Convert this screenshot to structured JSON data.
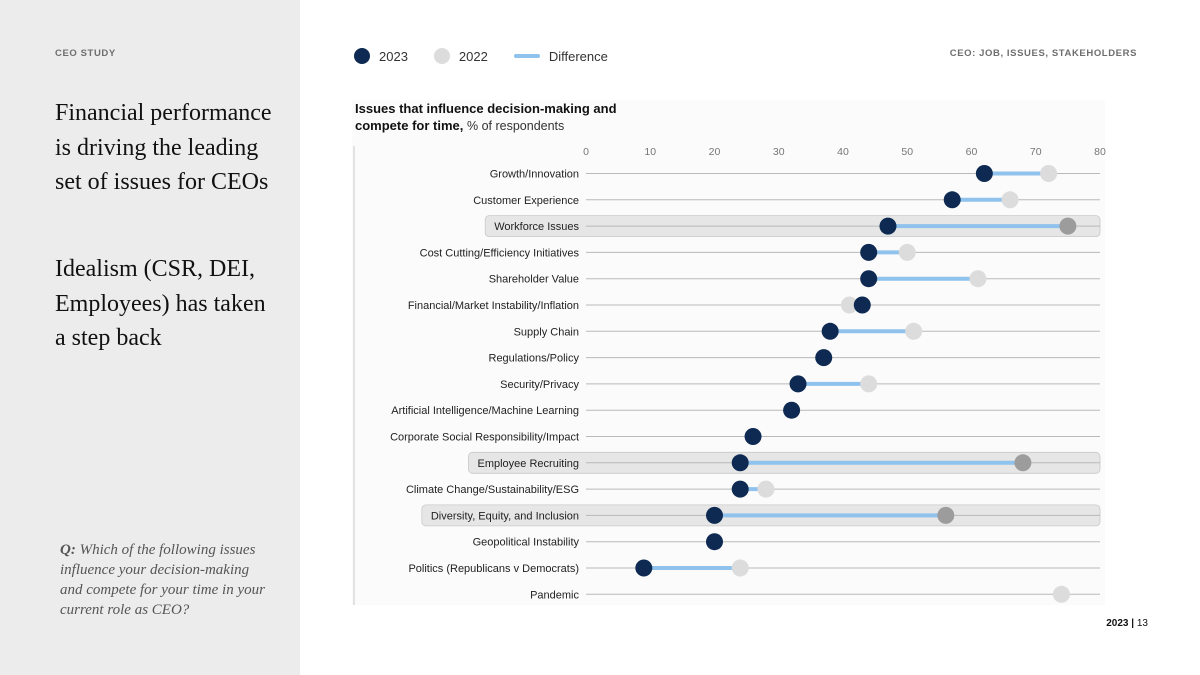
{
  "sidebar": {
    "eyebrow": "CEO STUDY",
    "headline_1": "Financial performance is driving the leading set of issues for CEOs",
    "headline_2": "Idealism (CSR, DEI, Employees) has taken a step back",
    "question_prefix": "Q:",
    "question_text": "Which of the following issues influence your decision-making and compete for your time in your current role as CEO?"
  },
  "header": {
    "section_label": "CEO: JOB, ISSUES, STAKEHOLDERS"
  },
  "legend": {
    "label_2023": "2023",
    "label_2022": "2022",
    "label_diff": "Difference"
  },
  "chart_title": {
    "line_1": "Issues that influence decision-making and",
    "line_2_bold": "compete for time,",
    "line_2_sub": "% of respondents"
  },
  "footer": {
    "year": "2023",
    "separator": "|",
    "page": "13"
  },
  "colors": {
    "navy": "#0e2a52",
    "light_gray": "#dcdcdc",
    "mid_gray": "#9c9c9c",
    "blue_line": "#8fc2ec",
    "highlight_band": "#e6e6e6"
  },
  "chart_data": {
    "type": "dumbbell",
    "title": "Issues that influence decision-making and compete for time, % of respondents",
    "xlim": [
      0,
      80
    ],
    "ticks": [
      0,
      10,
      20,
      30,
      40,
      50,
      60,
      70,
      80
    ],
    "series_names": [
      "2023",
      "2022",
      "Difference"
    ],
    "categories": [
      {
        "label": "Growth/Innovation",
        "v2023": 62,
        "v2022": 72,
        "highlight": false
      },
      {
        "label": "Customer Experience",
        "v2023": 57,
        "v2022": 66,
        "highlight": false
      },
      {
        "label": "Workforce Issues",
        "v2023": 47,
        "v2022": 75,
        "highlight": true
      },
      {
        "label": "Cost Cutting/Efficiency Initiatives",
        "v2023": 44,
        "v2022": 50,
        "highlight": false
      },
      {
        "label": "Shareholder Value",
        "v2023": 44,
        "v2022": 61,
        "highlight": false
      },
      {
        "label": "Financial/Market Instability/Inflation",
        "v2023": 43,
        "v2022": 41,
        "highlight": false
      },
      {
        "label": "Supply Chain",
        "v2023": 38,
        "v2022": 51,
        "highlight": false
      },
      {
        "label": "Regulations/Policy",
        "v2023": 37,
        "v2022": null,
        "highlight": false
      },
      {
        "label": "Security/Privacy",
        "v2023": 33,
        "v2022": 44,
        "highlight": false
      },
      {
        "label": "Artificial Intelligence/Machine Learning",
        "v2023": 32,
        "v2022": null,
        "highlight": false
      },
      {
        "label": "Corporate Social Responsibility/Impact",
        "v2023": 26,
        "v2022": null,
        "highlight": false
      },
      {
        "label": "Employee Recruiting",
        "v2023": 24,
        "v2022": 68,
        "highlight": true
      },
      {
        "label": "Climate Change/Sustainability/ESG",
        "v2023": 24,
        "v2022": 28,
        "highlight": false
      },
      {
        "label": "Diversity, Equity, and Inclusion",
        "v2023": 20,
        "v2022": 56,
        "highlight": true
      },
      {
        "label": "Geopolitical Instability",
        "v2023": 20,
        "v2022": null,
        "highlight": false
      },
      {
        "label": "Politics (Republicans v Democrats)",
        "v2023": 9,
        "v2022": 24,
        "highlight": false
      },
      {
        "label": "Pandemic",
        "v2023": null,
        "v2022": 74,
        "highlight": false
      }
    ]
  }
}
